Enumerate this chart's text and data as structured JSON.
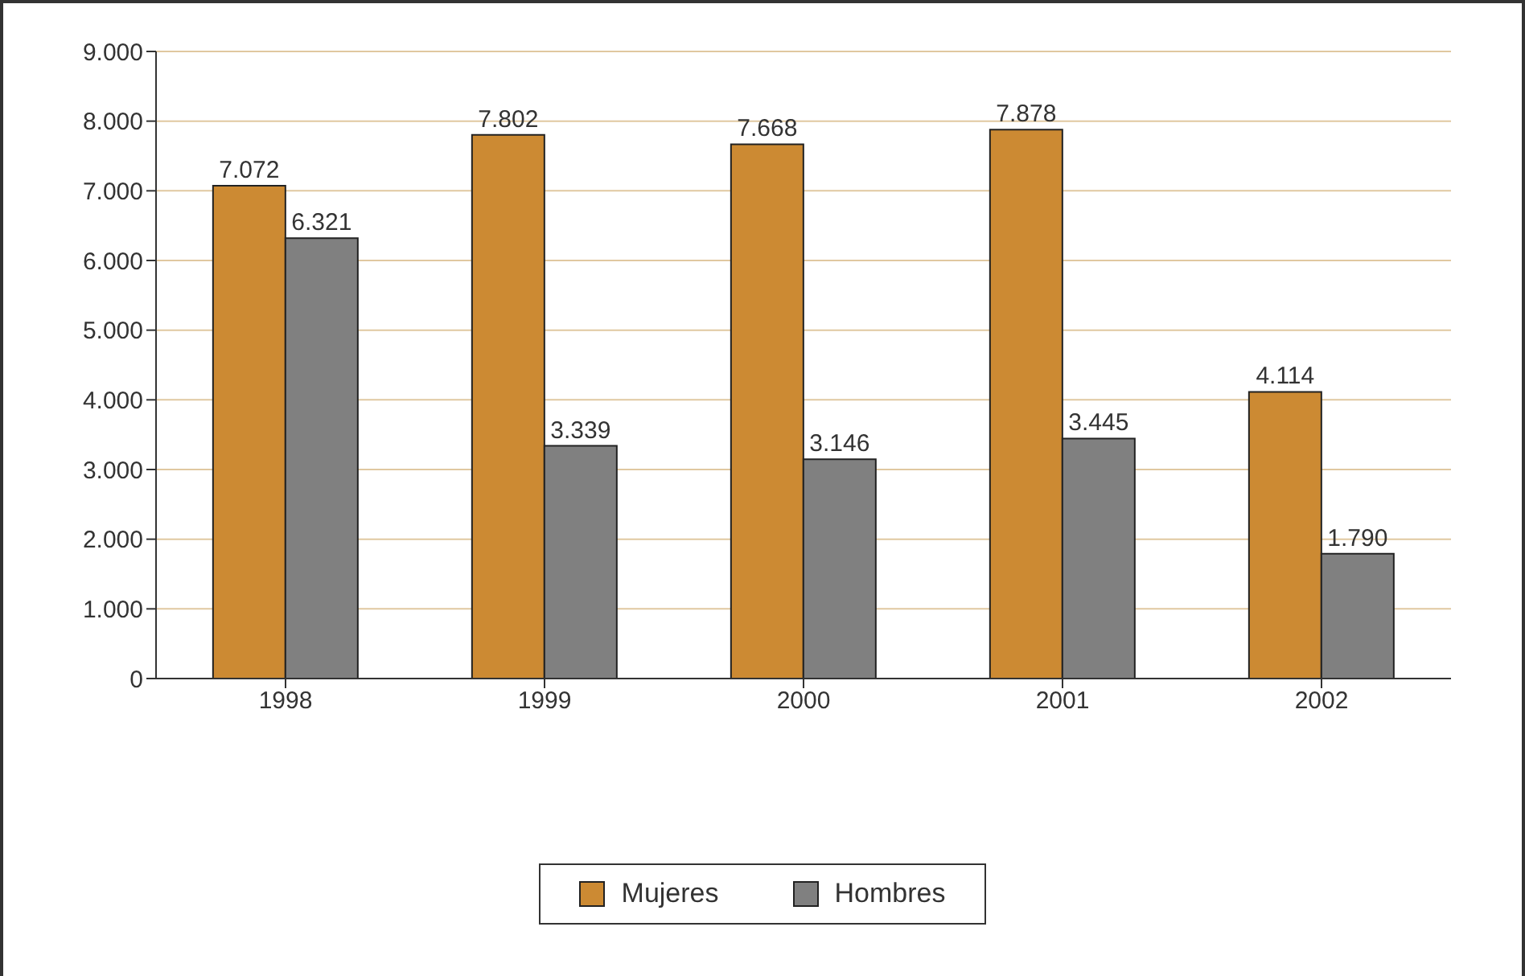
{
  "chart_data": {
    "type": "bar",
    "categories": [
      "1998",
      "1999",
      "2000",
      "2001",
      "2002"
    ],
    "series": [
      {
        "name": "Mujeres",
        "color": "#cc8a33",
        "values": [
          7072,
          7802,
          7668,
          7878,
          4114
        ],
        "value_labels": [
          "7.072",
          "7.802",
          "7.668",
          "7.878",
          "4.114"
        ]
      },
      {
        "name": "Hombres",
        "color": "#808080",
        "values": [
          6321,
          3339,
          3146,
          3445,
          1790
        ],
        "value_labels": [
          "6.321",
          "3.339",
          "3.146",
          "3.445",
          "1.790"
        ]
      }
    ],
    "ylim": [
      0,
      9000
    ],
    "yticks": [
      {
        "value": 0,
        "label": "0"
      },
      {
        "value": 1000,
        "label": "1.000"
      },
      {
        "value": 2000,
        "label": "2.000"
      },
      {
        "value": 3000,
        "label": "3.000"
      },
      {
        "value": 4000,
        "label": "4.000"
      },
      {
        "value": 5000,
        "label": "5.000"
      },
      {
        "value": 6000,
        "label": "6.000"
      },
      {
        "value": 7000,
        "label": "7.000"
      },
      {
        "value": 8000,
        "label": "8.000"
      },
      {
        "value": 9000,
        "label": "9.000"
      }
    ],
    "grid": "y",
    "legend": "bottom"
  }
}
